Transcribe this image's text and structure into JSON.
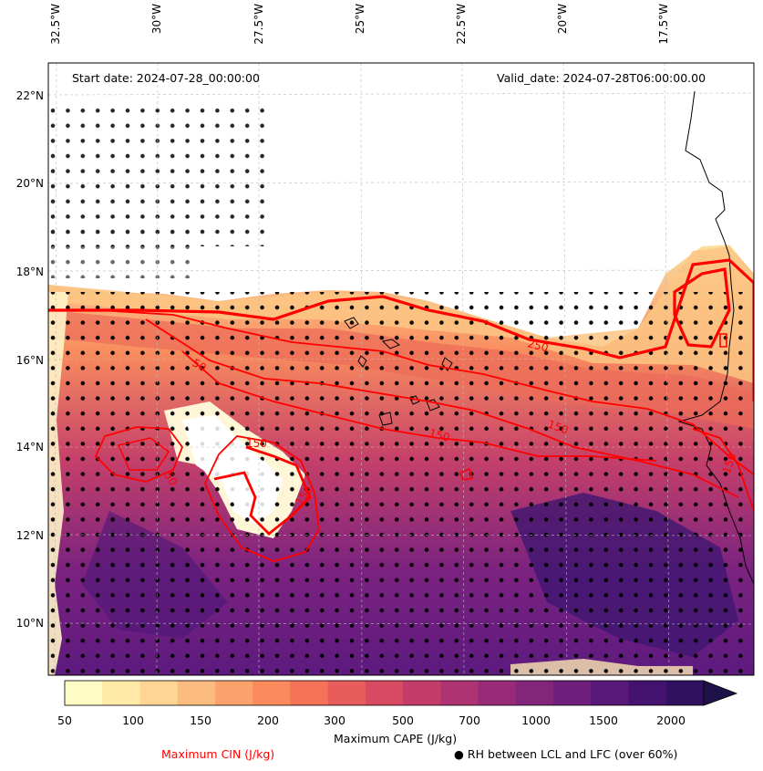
{
  "map": {
    "start_date": "Start date: 2024-07-28_00:00:00",
    "valid_date": "Valid_date: 2024-07-28T06:00:00.00",
    "lon_labels": [
      "32.5°W",
      "30°W",
      "27.5°W",
      "25°W",
      "22.5°W",
      "20°W",
      "17.5°W"
    ],
    "lat_labels": [
      "22°N",
      "20°N",
      "18°N",
      "16°N",
      "14°N",
      "12°N",
      "10°N"
    ],
    "contour_labels": [
      "250",
      "150",
      "150",
      "50",
      "150",
      "150",
      "50",
      "150"
    ]
  },
  "colorbar": {
    "ticks": [
      "50",
      "100",
      "150",
      "200",
      "300",
      "500",
      "700",
      "1000",
      "1500",
      "2000"
    ],
    "label": "Maximum CAPE (J/kg)",
    "colors": [
      "#fefcc5",
      "#feeaa6",
      "#fed593",
      "#fdbc7f",
      "#fca26c",
      "#fb8a5d",
      "#f47257",
      "#e85d5c",
      "#d84a62",
      "#c43d6a",
      "#ae3372",
      "#982b78",
      "#83257b",
      "#6e1f7c",
      "#5a1878",
      "#44136f",
      "#2f1160",
      "#1e1348"
    ]
  },
  "legend": {
    "cin_label": "Maximum CIN (J/kg)",
    "cin_color": "#ff0000",
    "rh_label": "RH between LCL and LFC (over 60%)"
  }
}
